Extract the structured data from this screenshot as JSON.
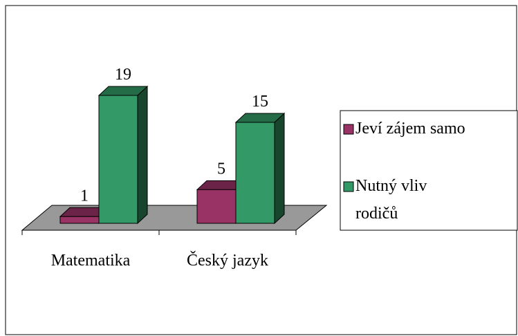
{
  "chart_data": {
    "type": "bar3d",
    "categories": [
      "Matematika",
      "Český jazyk"
    ],
    "series": [
      {
        "name": "Jeví zájem samo",
        "color": "#993366",
        "values": [
          1,
          5
        ]
      },
      {
        "name": "Nutný vliv rodičů",
        "color": "#339966",
        "values": [
          19,
          15
        ]
      }
    ],
    "legend": "right"
  }
}
